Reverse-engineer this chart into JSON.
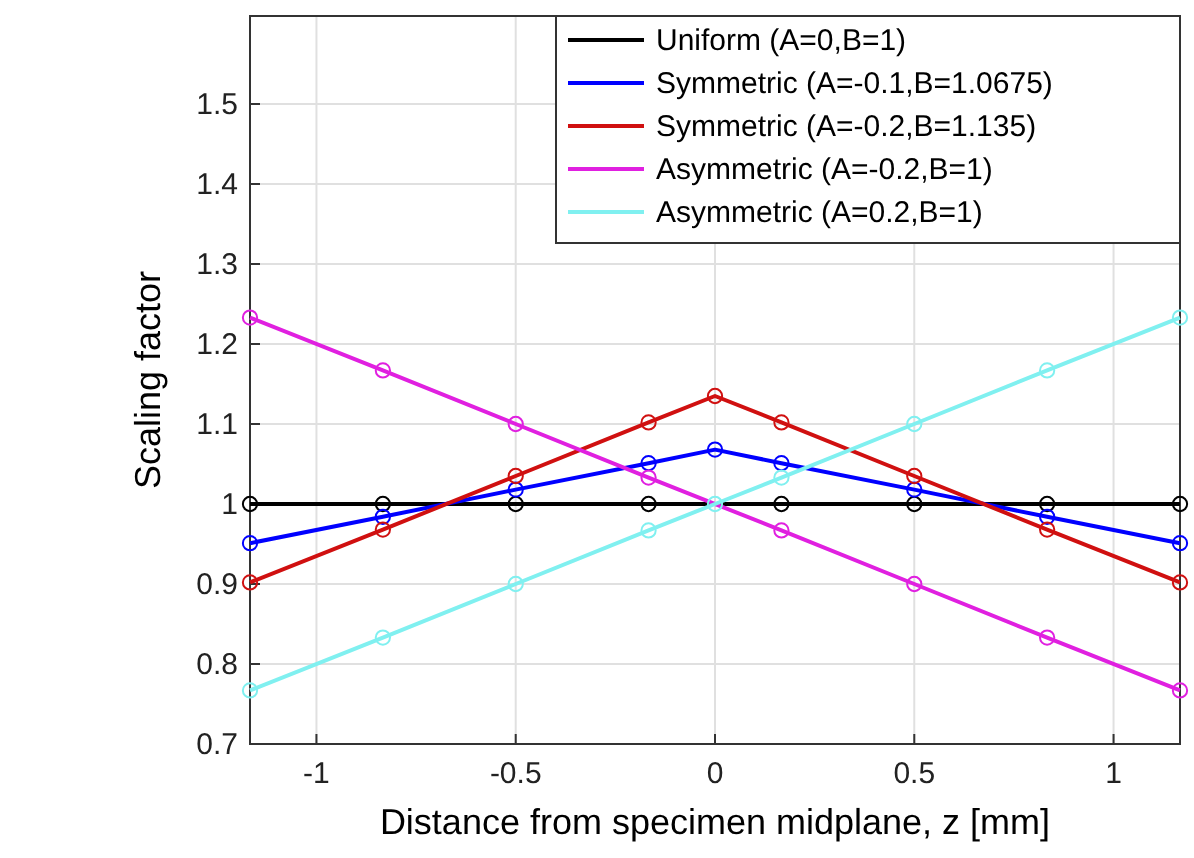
{
  "chart_data": {
    "type": "line",
    "xlabel": "Distance from specimen midplane, z [mm]",
    "ylabel": "Scaling factor",
    "xlim": [
      -1.1667,
      1.1667
    ],
    "ylim": [
      0.7,
      1.61
    ],
    "xticks": [
      -1,
      -0.5,
      0,
      0.5,
      1
    ],
    "yticks": [
      0.7,
      0.8,
      0.9,
      1,
      1.1,
      1.2,
      1.3,
      1.4,
      1.5
    ],
    "grid": true,
    "legend": "top right",
    "marker": "circle",
    "line_style": "solid",
    "series": [
      {
        "name": "Uniform (A=0,B=1)",
        "color": "#000000",
        "x": [
          -1.1667,
          -0.8333,
          -0.5,
          -0.1667,
          0.1667,
          0.5,
          0.8333,
          1.1667
        ],
        "values": [
          1,
          1,
          1,
          1,
          1,
          1,
          1,
          1
        ]
      },
      {
        "name": "Symmetric (A=-0.1,B=1.0675)",
        "color": "#0000ff",
        "x": [
          -1.1667,
          -0.8333,
          -0.5,
          -0.1667,
          0,
          0.1667,
          0.5,
          0.8333,
          1.1667
        ],
        "values": [
          0.951,
          0.984,
          1.018,
          1.051,
          1.068,
          1.051,
          1.018,
          0.984,
          0.951
        ]
      },
      {
        "name": "Symmetric (A=-0.2,B=1.135)",
        "color": "#d01010",
        "x": [
          -1.1667,
          -0.8333,
          -0.5,
          -0.1667,
          0,
          0.1667,
          0.5,
          0.8333,
          1.1667
        ],
        "values": [
          0.902,
          0.968,
          1.035,
          1.102,
          1.135,
          1.102,
          1.035,
          0.968,
          0.902
        ]
      },
      {
        "name": "Asymmetric (A=-0.2,B=1)",
        "color": "#e020e0",
        "x": [
          -1.1667,
          -0.8333,
          -0.5,
          -0.1667,
          0,
          0.1667,
          0.5,
          0.8333,
          1.1667
        ],
        "values": [
          1.233,
          1.167,
          1.1,
          1.033,
          null,
          0.967,
          0.9,
          0.833,
          0.767
        ]
      },
      {
        "name": "Asymmetric (A=0.2,B=1)",
        "color": "#80f0f0",
        "x": [
          -1.1667,
          -0.8333,
          -0.5,
          -0.1667,
          0,
          0.1667,
          0.5,
          0.8333,
          1.1667
        ],
        "values": [
          0.767,
          0.833,
          0.9,
          0.967,
          1,
          1.033,
          1.1,
          1.167,
          1.233
        ]
      }
    ]
  }
}
